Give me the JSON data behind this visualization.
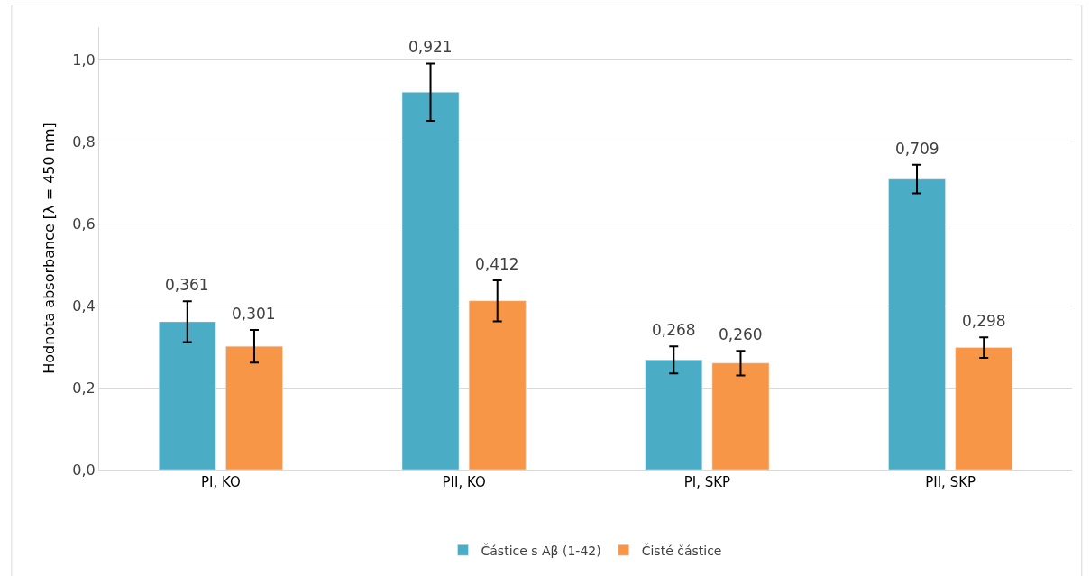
{
  "chart_data": {
    "type": "bar",
    "ylabel": "Hodnota absorbance [λ = 450 nm]",
    "categories": [
      "PI, KO",
      "PII, KO",
      "PI, SKP",
      "PII, SKP"
    ],
    "series": [
      {
        "name": "Částice s Aβ (1-42)",
        "color": "#4bacc6",
        "values": [
          0.361,
          0.921,
          0.268,
          0.709
        ],
        "value_labels": [
          "0,361",
          "0,921",
          "0,268",
          "0,709"
        ],
        "errors": [
          0.05,
          0.07,
          0.033,
          0.035
        ]
      },
      {
        "name": "Čisté částice",
        "color": "#f79646",
        "values": [
          0.301,
          0.412,
          0.26,
          0.298
        ],
        "value_labels": [
          "0,301",
          "0,412",
          "0,260",
          "0,298"
        ],
        "errors": [
          0.04,
          0.05,
          0.03,
          0.025
        ]
      }
    ],
    "ylim": [
      0,
      1.08
    ],
    "yticks": [
      {
        "value": 0,
        "label": "0,0"
      },
      {
        "value": 0.2,
        "label": "0,2"
      },
      {
        "value": 0.4,
        "label": "0,4"
      },
      {
        "value": 0.6,
        "label": "0,6"
      },
      {
        "value": 0.8,
        "label": "0,8"
      },
      {
        "value": 1.0,
        "label": "1,0"
      }
    ],
    "grid": "y",
    "legend": "bottom"
  }
}
